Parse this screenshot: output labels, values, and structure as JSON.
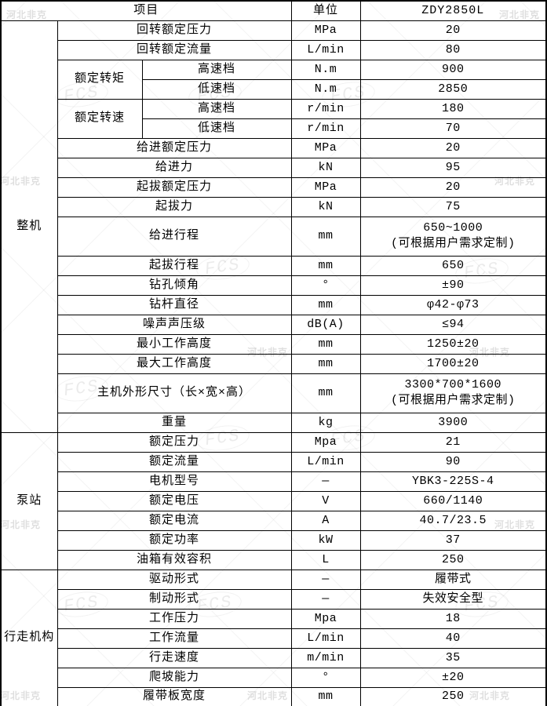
{
  "watermark": {
    "stamp_text": "FCS",
    "corner_text": "河北非克"
  },
  "table": {
    "model": "ZDY2850L",
    "columns_note": [
      "category",
      "item",
      "subitem",
      "unit",
      "value"
    ],
    "rows": [
      {
        "cells": [
          {
            "t": "项目",
            "cs": 3,
            "cls": "hdr",
            "name": "column-header-item"
          },
          {
            "t": "单位",
            "cls": "hdr",
            "name": "column-header-unit"
          },
          {
            "t": "ZDY2850L",
            "cls": "hdr",
            "name": "column-header-model"
          }
        ]
      },
      {
        "cells": [
          {
            "t": "整机",
            "rs": 19,
            "cls": "cat",
            "name": "category-cell-whole-machine"
          },
          {
            "t": "回转额定压力",
            "cs": 2,
            "cls": "item",
            "name": "item-cell"
          },
          {
            "t": "MPa",
            "cls": "unit",
            "name": "unit-cell"
          },
          {
            "t": "20",
            "cls": "val",
            "name": "value-cell"
          }
        ]
      },
      {
        "cells": [
          {
            "t": "回转额定流量",
            "cs": 2,
            "cls": "item",
            "name": "item-cell"
          },
          {
            "t": "L/min",
            "cls": "unit",
            "name": "unit-cell"
          },
          {
            "t": "80",
            "cls": "val",
            "name": "value-cell"
          }
        ]
      },
      {
        "cells": [
          {
            "t": "额定转矩",
            "rs": 2,
            "cls": "item",
            "name": "item-cell"
          },
          {
            "t": "高速档",
            "cls": "sub",
            "name": "subitem-cell"
          },
          {
            "t": "N.m",
            "cls": "unit",
            "name": "unit-cell"
          },
          {
            "t": "900",
            "cls": "val",
            "name": "value-cell"
          }
        ]
      },
      {
        "cells": [
          {
            "t": "低速档",
            "cls": "sub",
            "name": "subitem-cell"
          },
          {
            "t": "N.m",
            "cls": "unit",
            "name": "unit-cell"
          },
          {
            "t": "2850",
            "cls": "val",
            "name": "value-cell"
          }
        ]
      },
      {
        "cells": [
          {
            "t": "额定转速",
            "rs": 2,
            "cls": "item",
            "name": "item-cell"
          },
          {
            "t": "高速档",
            "cls": "sub",
            "name": "subitem-cell"
          },
          {
            "t": "r/min",
            "cls": "unit",
            "name": "unit-cell"
          },
          {
            "t": "180",
            "cls": "val",
            "name": "value-cell"
          }
        ]
      },
      {
        "cells": [
          {
            "t": "低速档",
            "cls": "sub",
            "name": "subitem-cell"
          },
          {
            "t": "r/min",
            "cls": "unit",
            "name": "unit-cell"
          },
          {
            "t": "70",
            "cls": "val",
            "name": "value-cell"
          }
        ]
      },
      {
        "cells": [
          {
            "t": "给进额定压力",
            "cs": 2,
            "cls": "item",
            "name": "item-cell"
          },
          {
            "t": "MPa",
            "cls": "unit",
            "name": "unit-cell"
          },
          {
            "t": "20",
            "cls": "val",
            "name": "value-cell"
          }
        ]
      },
      {
        "cells": [
          {
            "t": "给进力",
            "cs": 2,
            "cls": "item",
            "name": "item-cell"
          },
          {
            "t": "kN",
            "cls": "unit",
            "name": "unit-cell"
          },
          {
            "t": "95",
            "cls": "val",
            "name": "value-cell"
          }
        ]
      },
      {
        "cells": [
          {
            "t": "起拔额定压力",
            "cs": 2,
            "cls": "item",
            "name": "item-cell"
          },
          {
            "t": "MPa",
            "cls": "unit",
            "name": "unit-cell"
          },
          {
            "t": "20",
            "cls": "val",
            "name": "value-cell"
          }
        ]
      },
      {
        "cells": [
          {
            "t": "起拔力",
            "cs": 2,
            "cls": "item",
            "name": "item-cell"
          },
          {
            "t": "kN",
            "cls": "unit",
            "name": "unit-cell"
          },
          {
            "t": "75",
            "cls": "val",
            "name": "value-cell"
          }
        ]
      },
      {
        "tall": true,
        "cells": [
          {
            "t": "给进行程",
            "cs": 2,
            "cls": "item",
            "name": "item-cell"
          },
          {
            "t": "mm",
            "cls": "unit",
            "name": "unit-cell"
          },
          {
            "t": "650~1000\n(可根据用户需求定制)",
            "cls": "val",
            "name": "value-cell"
          }
        ]
      },
      {
        "cells": [
          {
            "t": "起拔行程",
            "cs": 2,
            "cls": "item",
            "name": "item-cell"
          },
          {
            "t": "mm",
            "cls": "unit",
            "name": "unit-cell"
          },
          {
            "t": "650",
            "cls": "val",
            "name": "value-cell"
          }
        ]
      },
      {
        "cells": [
          {
            "t": "钻孔倾角",
            "cs": 2,
            "cls": "item",
            "name": "item-cell"
          },
          {
            "t": "°",
            "cls": "unit",
            "name": "unit-cell"
          },
          {
            "t": "±90",
            "cls": "val",
            "name": "value-cell"
          }
        ]
      },
      {
        "cells": [
          {
            "t": "钻杆直径",
            "cs": 2,
            "cls": "item",
            "name": "item-cell"
          },
          {
            "t": "mm",
            "cls": "unit",
            "name": "unit-cell"
          },
          {
            "t": "φ42-φ73",
            "cls": "val",
            "name": "value-cell"
          }
        ]
      },
      {
        "cells": [
          {
            "t": "噪声声压级",
            "cs": 2,
            "cls": "item",
            "name": "item-cell"
          },
          {
            "t": "dB(A)",
            "cls": "unit",
            "name": "unit-cell"
          },
          {
            "t": "≤94",
            "cls": "val",
            "name": "value-cell"
          }
        ]
      },
      {
        "cells": [
          {
            "t": "最小工作高度",
            "cs": 2,
            "cls": "item",
            "name": "item-cell"
          },
          {
            "t": "mm",
            "cls": "unit",
            "name": "unit-cell"
          },
          {
            "t": "1250±20",
            "cls": "val",
            "name": "value-cell"
          }
        ]
      },
      {
        "cells": [
          {
            "t": "最大工作高度",
            "cs": 2,
            "cls": "item",
            "name": "item-cell"
          },
          {
            "t": "mm",
            "cls": "unit",
            "name": "unit-cell"
          },
          {
            "t": "1700±20",
            "cls": "val",
            "name": "value-cell"
          }
        ]
      },
      {
        "tall": true,
        "cells": [
          {
            "t": "主机外形尺寸（长×宽×高）",
            "cs": 2,
            "cls": "item",
            "name": "item-cell"
          },
          {
            "t": "mm",
            "cls": "unit",
            "name": "unit-cell"
          },
          {
            "t": "3300*700*1600\n(可根据用户需求定制)",
            "cls": "val",
            "name": "value-cell"
          }
        ]
      },
      {
        "cells": [
          {
            "t": "重量",
            "cs": 2,
            "cls": "item",
            "name": "item-cell"
          },
          {
            "t": "kg",
            "cls": "unit",
            "name": "unit-cell"
          },
          {
            "t": "3900",
            "cls": "val",
            "name": "value-cell"
          }
        ]
      },
      {
        "cells": [
          {
            "t": "泵站",
            "rs": 7,
            "cls": "cat",
            "name": "category-cell-pump-station"
          },
          {
            "t": "额定压力",
            "cs": 2,
            "cls": "item",
            "name": "item-cell"
          },
          {
            "t": "Mpa",
            "cls": "unit",
            "name": "unit-cell"
          },
          {
            "t": "21",
            "cls": "val",
            "name": "value-cell"
          }
        ]
      },
      {
        "cells": [
          {
            "t": "额定流量",
            "cs": 2,
            "cls": "item",
            "name": "item-cell"
          },
          {
            "t": "L/min",
            "cls": "unit",
            "name": "unit-cell"
          },
          {
            "t": "90",
            "cls": "val",
            "name": "value-cell"
          }
        ]
      },
      {
        "cells": [
          {
            "t": "电机型号",
            "cs": 2,
            "cls": "item",
            "name": "item-cell"
          },
          {
            "t": "—",
            "cls": "unit",
            "name": "unit-cell"
          },
          {
            "t": "YBK3-225S-4",
            "cls": "val",
            "name": "value-cell"
          }
        ]
      },
      {
        "cells": [
          {
            "t": "额定电压",
            "cs": 2,
            "cls": "item",
            "name": "item-cell"
          },
          {
            "t": "V",
            "cls": "unit",
            "name": "unit-cell"
          },
          {
            "t": "660/1140",
            "cls": "val",
            "name": "value-cell"
          }
        ]
      },
      {
        "cells": [
          {
            "t": "额定电流",
            "cs": 2,
            "cls": "item",
            "name": "item-cell"
          },
          {
            "t": "A",
            "cls": "unit",
            "name": "unit-cell"
          },
          {
            "t": "40.7/23.5",
            "cls": "val",
            "name": "value-cell"
          }
        ]
      },
      {
        "cells": [
          {
            "t": "额定功率",
            "cs": 2,
            "cls": "item",
            "name": "item-cell"
          },
          {
            "t": "kW",
            "cls": "unit",
            "name": "unit-cell"
          },
          {
            "t": "37",
            "cls": "val",
            "name": "value-cell"
          }
        ]
      },
      {
        "cells": [
          {
            "t": "油箱有效容积",
            "cs": 2,
            "cls": "item",
            "name": "item-cell"
          },
          {
            "t": "L",
            "cls": "unit",
            "name": "unit-cell"
          },
          {
            "t": "250",
            "cls": "val",
            "name": "value-cell"
          }
        ]
      },
      {
        "cells": [
          {
            "t": "行走机构",
            "rs": 7,
            "cls": "cat",
            "name": "category-cell-travel-mechanism"
          },
          {
            "t": "驱动形式",
            "cs": 2,
            "cls": "item",
            "name": "item-cell"
          },
          {
            "t": "—",
            "cls": "unit",
            "name": "unit-cell"
          },
          {
            "t": "履带式",
            "cls": "val",
            "name": "value-cell"
          }
        ]
      },
      {
        "cells": [
          {
            "t": "制动形式",
            "cs": 2,
            "cls": "item",
            "name": "item-cell"
          },
          {
            "t": "—",
            "cls": "unit",
            "name": "unit-cell"
          },
          {
            "t": "失效安全型",
            "cls": "val",
            "name": "value-cell"
          }
        ]
      },
      {
        "cells": [
          {
            "t": "工作压力",
            "cs": 2,
            "cls": "item",
            "name": "item-cell"
          },
          {
            "t": "Mpa",
            "cls": "unit",
            "name": "unit-cell"
          },
          {
            "t": "18",
            "cls": "val",
            "name": "value-cell"
          }
        ]
      },
      {
        "cells": [
          {
            "t": "工作流量",
            "cs": 2,
            "cls": "item",
            "name": "item-cell"
          },
          {
            "t": "L/min",
            "cls": "unit",
            "name": "unit-cell"
          },
          {
            "t": "40",
            "cls": "val",
            "name": "value-cell"
          }
        ]
      },
      {
        "cells": [
          {
            "t": "行走速度",
            "cs": 2,
            "cls": "item",
            "name": "item-cell"
          },
          {
            "t": "m/min",
            "cls": "unit",
            "name": "unit-cell"
          },
          {
            "t": "35",
            "cls": "val",
            "name": "value-cell"
          }
        ]
      },
      {
        "cells": [
          {
            "t": "爬坡能力",
            "cs": 2,
            "cls": "item",
            "name": "item-cell"
          },
          {
            "t": "°",
            "cls": "unit",
            "name": "unit-cell"
          },
          {
            "t": "±20",
            "cls": "val",
            "name": "value-cell"
          }
        ]
      },
      {
        "cells": [
          {
            "t": "履带板宽度",
            "cs": 2,
            "cls": "item",
            "name": "item-cell"
          },
          {
            "t": "mm",
            "cls": "unit",
            "name": "unit-cell"
          },
          {
            "t": "250",
            "cls": "val",
            "name": "value-cell"
          }
        ]
      }
    ]
  }
}
